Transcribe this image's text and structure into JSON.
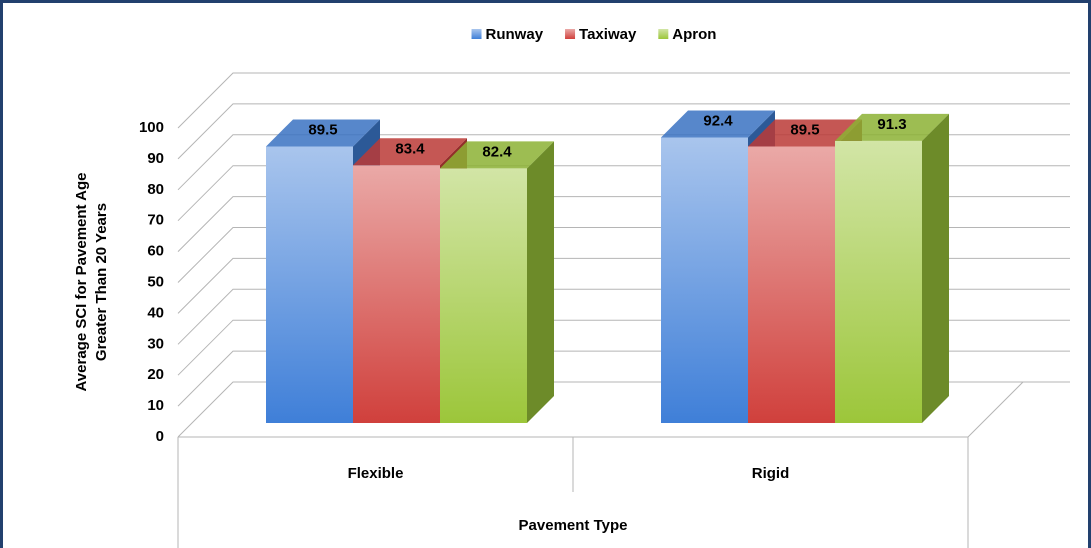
{
  "chart_data": {
    "type": "bar3d",
    "categories": [
      "Flexible",
      "Rigid"
    ],
    "series": [
      {
        "name": "Runway",
        "color": "#3f7fd8",
        "values": [
          89.5,
          92.4
        ]
      },
      {
        "name": "Taxiway",
        "color": "#d0403c",
        "values": [
          83.4,
          89.5
        ]
      },
      {
        "name": "Apron",
        "color": "#9cc63a",
        "values": [
          82.4,
          91.3
        ]
      }
    ],
    "x_label": "Pavement Type",
    "y_label": [
      "Average SCI for Pavement Age",
      "Greater Than 20 Years"
    ],
    "ylim": [
      0,
      100
    ],
    "yticks": [
      0,
      10,
      20,
      30,
      40,
      50,
      60,
      70,
      80,
      90,
      100
    ],
    "grid": true,
    "legend": "top"
  }
}
